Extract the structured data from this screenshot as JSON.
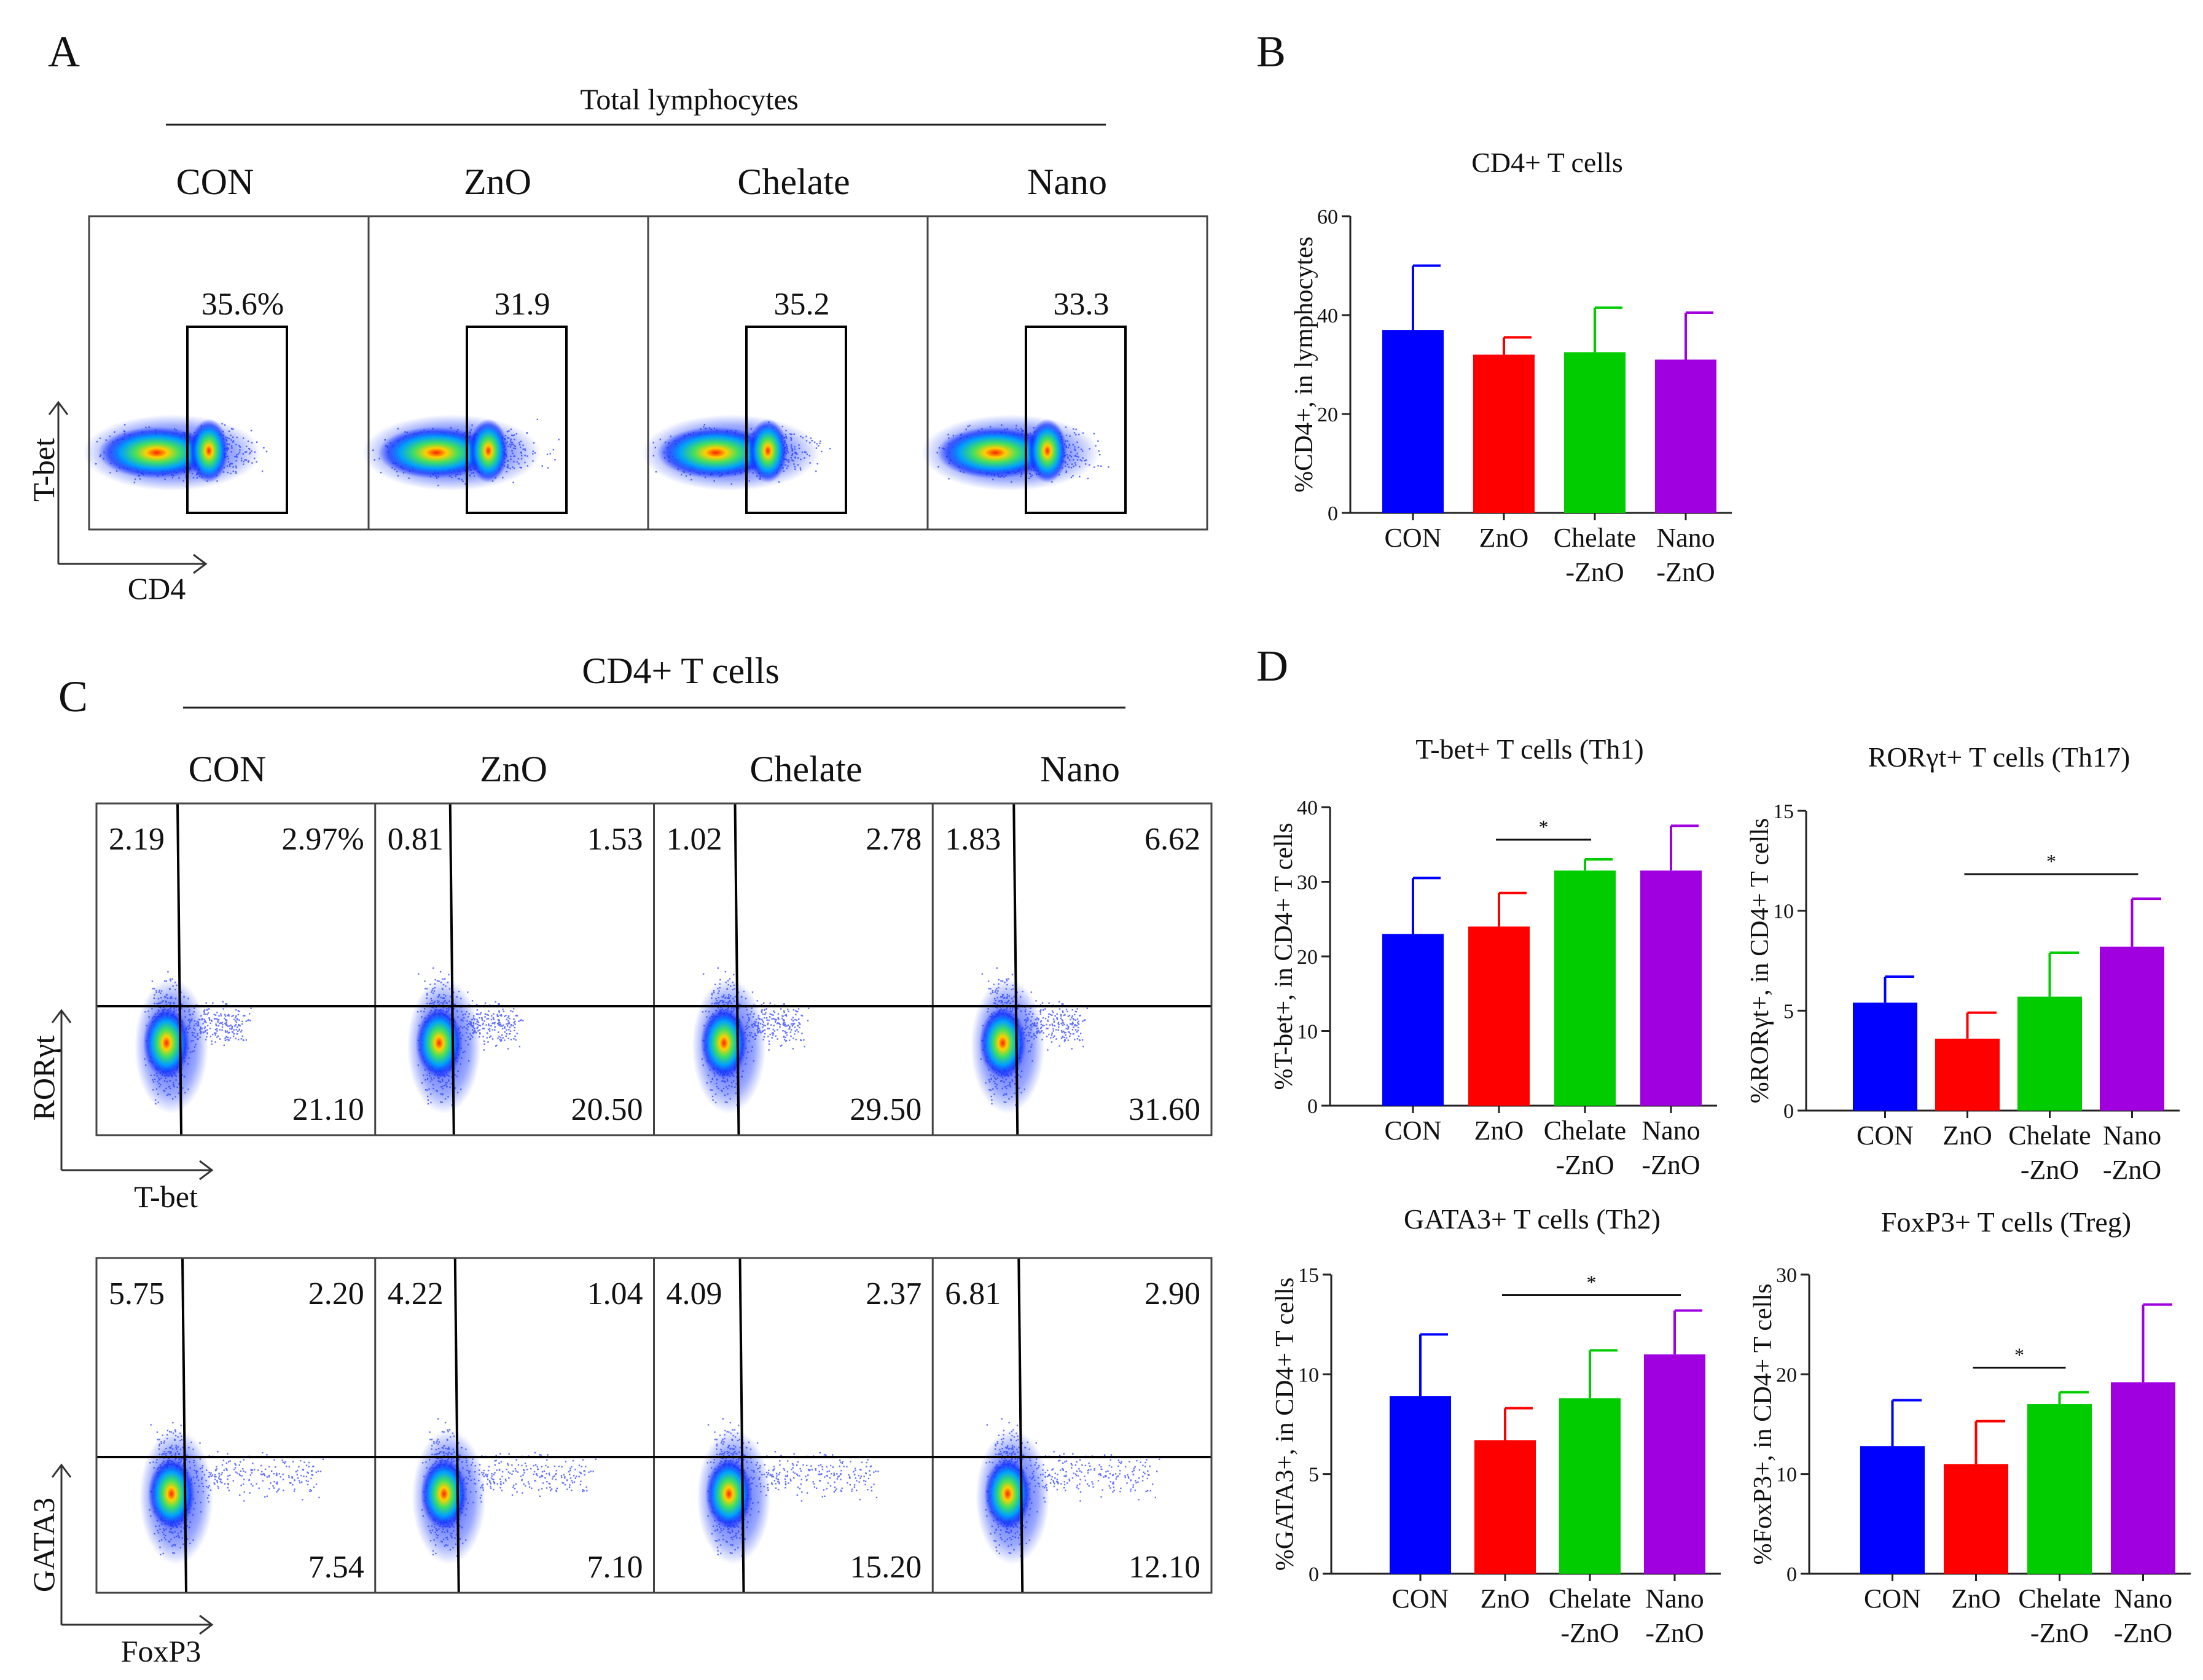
{
  "panel_letters": {
    "a": "A",
    "b": "B",
    "c": "C",
    "d": "D"
  },
  "flow_a": {
    "header": "Total lymphocytes",
    "groups": [
      "CON",
      "ZnO",
      "Chelate",
      "Nano"
    ],
    "gate_percents": [
      "35.6%",
      "31.9",
      "35.2",
      "33.3"
    ],
    "x_axis": "CD4",
    "y_axis": "T-bet"
  },
  "flow_c": {
    "header": "CD4+ T cells",
    "groups": [
      "CON",
      "ZnO",
      "Chelate",
      "Nano"
    ],
    "row1": {
      "x_axis": "T-bet",
      "y_axis": "RORγt",
      "quadrants": [
        {
          "ul": "2.19",
          "ur": "2.97%",
          "lr": "21.10"
        },
        {
          "ul": "0.81",
          "ur": "1.53",
          "lr": "20.50"
        },
        {
          "ul": "1.02",
          "ur": "2.78",
          "lr": "29.50"
        },
        {
          "ul": "1.83",
          "ur": "6.62",
          "lr": "31.60"
        }
      ]
    },
    "row2": {
      "x_axis": "FoxP3",
      "y_axis": "GATA3",
      "quadrants": [
        {
          "ul": "5.75",
          "ur": "2.20",
          "lr": "7.54"
        },
        {
          "ul": "4.22",
          "ur": "1.04",
          "lr": "7.10"
        },
        {
          "ul": "4.09",
          "ur": "2.37",
          "lr": "15.20"
        },
        {
          "ul": "6.81",
          "ur": "2.90",
          "lr": "12.10"
        }
      ]
    }
  },
  "colors": {
    "blue": "#0000ff",
    "red": "#ff0000",
    "green": "#00cc00",
    "purple": "#a000e0"
  },
  "chart_data": [
    {
      "id": "B",
      "type": "bar",
      "title": "CD4+ T cells",
      "ylabel": "%CD4+, in lymphocytes",
      "categories": [
        [
          "CON"
        ],
        [
          "ZnO"
        ],
        [
          "Chelate",
          "-ZnO"
        ],
        [
          "Nano",
          "-ZnO"
        ]
      ],
      "values": [
        37,
        32,
        32.5,
        31
      ],
      "errors": [
        13,
        3.5,
        9,
        9.5
      ],
      "ylim": [
        0,
        60
      ],
      "yticks": [
        "0",
        "20",
        "40",
        "60"
      ],
      "significance": []
    },
    {
      "id": "D1",
      "type": "bar",
      "title": "T-bet+ T cells (Th1)",
      "ylabel": "%T-bet+, in CD4+ T cells",
      "categories": [
        [
          "CON"
        ],
        [
          "ZnO"
        ],
        [
          "Chelate",
          "-ZnO"
        ],
        [
          "Nano",
          "-ZnO"
        ]
      ],
      "values": [
        23,
        24,
        31.5,
        31.5
      ],
      "errors": [
        7.5,
        4.5,
        1.5,
        6
      ],
      "ylim": [
        0,
        40
      ],
      "yticks": [
        "0",
        "10",
        "20",
        "30",
        "40"
      ],
      "significance": [
        {
          "from": 1,
          "to": 2,
          "label": "*"
        }
      ]
    },
    {
      "id": "D2",
      "type": "bar",
      "title": "RORγt+ T cells (Th17)",
      "ylabel": "%RORγt+, in CD4+ T cells",
      "categories": [
        [
          "CON"
        ],
        [
          "ZnO"
        ],
        [
          "Chelate",
          "-ZnO"
        ],
        [
          "Nano",
          "-ZnO"
        ]
      ],
      "values": [
        5.4,
        3.6,
        5.7,
        8.2
      ],
      "errors": [
        1.3,
        1.3,
        2.2,
        2.4
      ],
      "ylim": [
        0,
        15
      ],
      "yticks": [
        "0",
        "5",
        "10",
        "15"
      ],
      "significance": [
        {
          "from": 1,
          "to": 3,
          "label": "*"
        }
      ]
    },
    {
      "id": "D3",
      "type": "bar",
      "title": "GATA3+ T cells (Th2)",
      "ylabel": "%GATA3+, in CD4+ T cells",
      "categories": [
        [
          "CON"
        ],
        [
          "ZnO"
        ],
        [
          "Chelate",
          "-ZnO"
        ],
        [
          "Nano",
          "-ZnO"
        ]
      ],
      "values": [
        8.9,
        6.7,
        8.8,
        11
      ],
      "errors": [
        3.1,
        1.6,
        2.4,
        2.2
      ],
      "ylim": [
        0,
        15
      ],
      "yticks": [
        "0",
        "5",
        "10",
        "15"
      ],
      "significance": [
        {
          "from": 1,
          "to": 3,
          "label": "*"
        }
      ]
    },
    {
      "id": "D4",
      "type": "bar",
      "title": "FoxP3+ T cells (Treg)",
      "ylabel": "%FoxP3+, in CD4+ T cells",
      "categories": [
        [
          "CON"
        ],
        [
          "ZnO"
        ],
        [
          "Chelate",
          "-ZnO"
        ],
        [
          "Nano",
          "-ZnO"
        ]
      ],
      "values": [
        12.8,
        11,
        17,
        19.2
      ],
      "errors": [
        4.6,
        4.3,
        1.2,
        7.8
      ],
      "ylim": [
        0,
        30
      ],
      "yticks": [
        "0",
        "10",
        "20",
        "30"
      ],
      "significance": [
        {
          "from": 1,
          "to": 2,
          "label": "*"
        }
      ]
    }
  ]
}
